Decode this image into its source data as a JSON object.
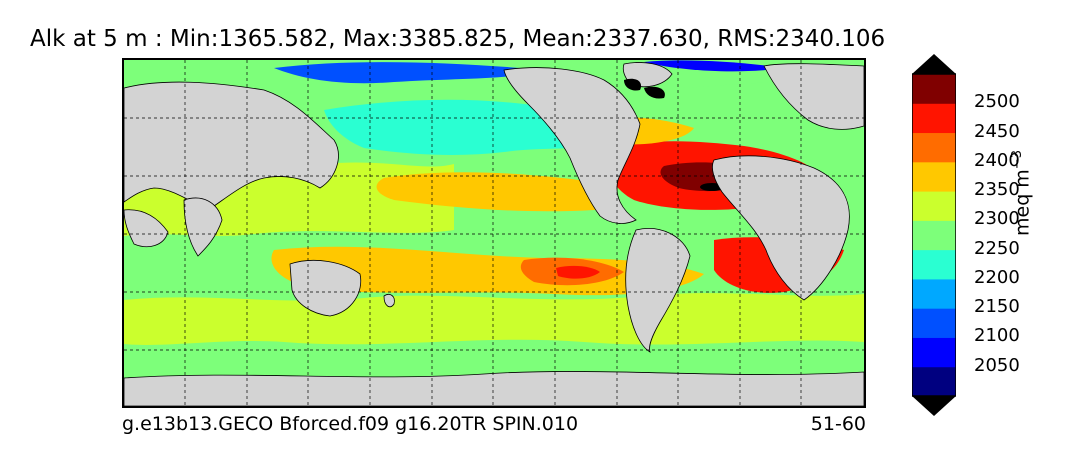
{
  "title": "Alk at 5 m : Min:1365.582, Max:3385.825, Mean:2337.630, RMS:2340.106",
  "footer": {
    "left": "g.e13b13.GECO Bforced.f09 g16.20TR SPIN.010",
    "right": "51-60"
  },
  "colorbar": {
    "unit_base": "meq m",
    "unit_exp": "−3",
    "ticks": [
      "2500",
      "2450",
      "2400",
      "2350",
      "2300",
      "2250",
      "2200",
      "2150",
      "2100",
      "2050"
    ],
    "colors": [
      "#000080",
      "#0000ff",
      "#0050ff",
      "#00a8ff",
      "#2affd2",
      "#7dff7a",
      "#cbff2d",
      "#ffc800",
      "#ff6c00",
      "#ff1400",
      "#800000"
    ]
  },
  "map": {
    "land_color": "#d3d3d3",
    "ice_color": "#000000",
    "gridline_style": "dashed"
  }
}
